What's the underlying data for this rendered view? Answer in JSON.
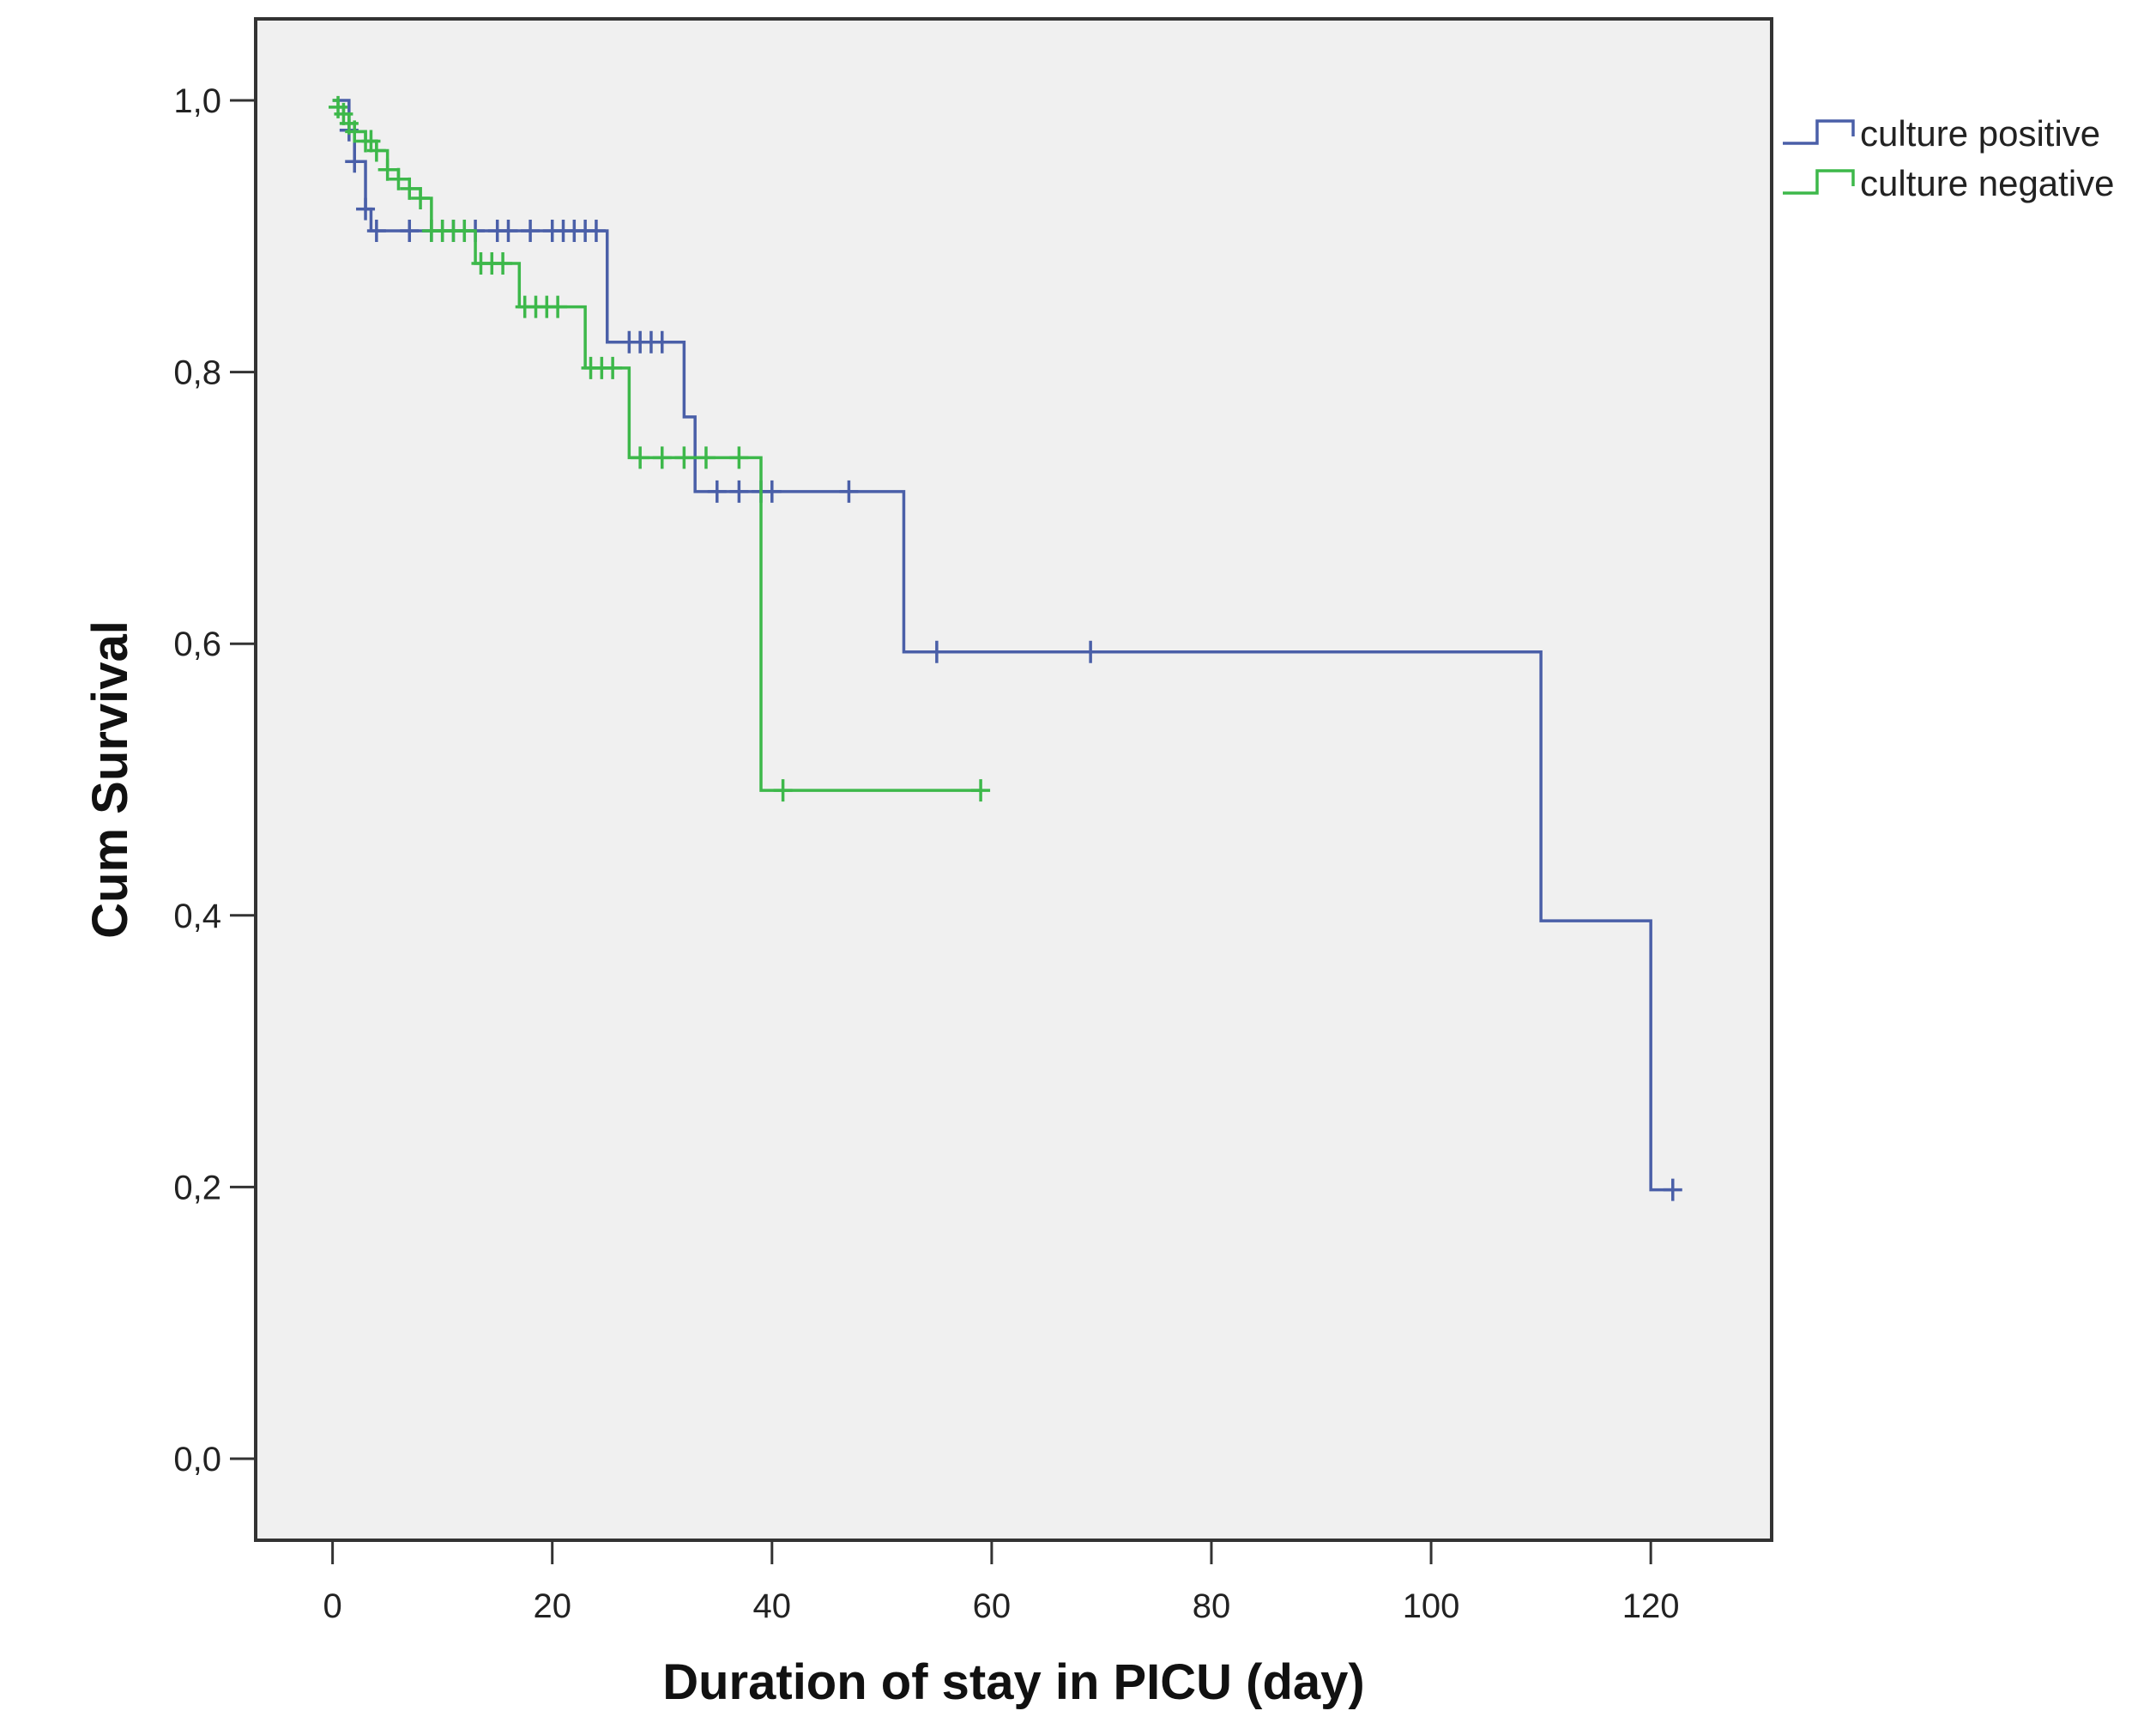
{
  "chart_data": {
    "type": "line",
    "subtype": "kaplan-meier-step",
    "title": "",
    "xlabel": "Duration of stay in PICU (day)",
    "ylabel": "Cum Survival",
    "xlim": [
      -7,
      131
    ],
    "ylim": [
      -0.06,
      1.06
    ],
    "xticks": [
      0,
      20,
      40,
      60,
      80,
      100,
      120
    ],
    "yticks": [
      0.0,
      0.2,
      0.4,
      0.6,
      0.8,
      1.0
    ],
    "xtick_labels": [
      "0",
      "20",
      "40",
      "60",
      "80",
      "100",
      "120"
    ],
    "ytick_labels": [
      "0,0",
      "0,2",
      "0,4",
      "0,6",
      "0,8",
      "1,0"
    ],
    "grid": false,
    "plot_background": "#f0f0f0",
    "legend_position": "outside-top-right",
    "series": [
      {
        "name": "culture positive",
        "color": "#4a5fa8",
        "start": [
          0,
          1.0
        ],
        "steps": [
          [
            1.5,
            0.978
          ],
          [
            2,
            0.955
          ],
          [
            3,
            0.92
          ],
          [
            3.5,
            0.904
          ],
          [
            25,
            0.822
          ],
          [
            32,
            0.767
          ],
          [
            33,
            0.712
          ],
          [
            52,
            0.594
          ],
          [
            110,
            0.396
          ],
          [
            120,
            0.198
          ]
        ],
        "end_x": 122,
        "censored": [
          [
            1.5,
            0.978
          ],
          [
            2,
            0.955
          ],
          [
            3,
            0.92
          ],
          [
            4,
            0.904
          ],
          [
            7,
            0.904
          ],
          [
            9,
            0.904
          ],
          [
            10,
            0.904
          ],
          [
            11,
            0.904
          ],
          [
            12,
            0.904
          ],
          [
            13,
            0.904
          ],
          [
            15,
            0.904
          ],
          [
            16,
            0.904
          ],
          [
            18,
            0.904
          ],
          [
            20,
            0.904
          ],
          [
            21,
            0.904
          ],
          [
            22,
            0.904
          ],
          [
            23,
            0.904
          ],
          [
            24,
            0.904
          ],
          [
            27,
            0.822
          ],
          [
            28,
            0.822
          ],
          [
            29,
            0.822
          ],
          [
            30,
            0.822
          ],
          [
            35,
            0.712
          ],
          [
            37,
            0.712
          ],
          [
            39,
            0.712
          ],
          [
            40,
            0.712
          ],
          [
            47,
            0.712
          ],
          [
            55,
            0.594
          ],
          [
            69,
            0.594
          ],
          [
            122,
            0.198
          ]
        ]
      },
      {
        "name": "culture negative",
        "color": "#3db84a",
        "start": [
          0,
          1.0
        ],
        "steps": [
          [
            0.5,
            0.995
          ],
          [
            1,
            0.99
          ],
          [
            1.5,
            0.983
          ],
          [
            2,
            0.977
          ],
          [
            3,
            0.97
          ],
          [
            4,
            0.963
          ],
          [
            5,
            0.949
          ],
          [
            6,
            0.942
          ],
          [
            7,
            0.935
          ],
          [
            8,
            0.928
          ],
          [
            9,
            0.904
          ],
          [
            13,
            0.88
          ],
          [
            17,
            0.848
          ],
          [
            23,
            0.803
          ],
          [
            27,
            0.737
          ],
          [
            39,
            0.492
          ]
        ],
        "end_x": 59,
        "censored": [
          [
            0.5,
            0.995
          ],
          [
            1,
            0.99
          ],
          [
            1.5,
            0.983
          ],
          [
            2,
            0.977
          ],
          [
            3,
            0.97
          ],
          [
            3.5,
            0.97
          ],
          [
            4,
            0.963
          ],
          [
            5,
            0.949
          ],
          [
            6,
            0.942
          ],
          [
            7,
            0.935
          ],
          [
            8,
            0.928
          ],
          [
            9,
            0.904
          ],
          [
            10,
            0.904
          ],
          [
            11,
            0.904
          ],
          [
            12,
            0.904
          ],
          [
            13.5,
            0.88
          ],
          [
            14.5,
            0.88
          ],
          [
            15.5,
            0.88
          ],
          [
            17.5,
            0.848
          ],
          [
            18.5,
            0.848
          ],
          [
            19.5,
            0.848
          ],
          [
            20.5,
            0.848
          ],
          [
            23.5,
            0.803
          ],
          [
            24.5,
            0.803
          ],
          [
            25.5,
            0.803
          ],
          [
            28,
            0.737
          ],
          [
            30,
            0.737
          ],
          [
            32,
            0.737
          ],
          [
            34,
            0.737
          ],
          [
            37,
            0.737
          ],
          [
            41,
            0.492
          ],
          [
            59,
            0.492
          ]
        ]
      }
    ]
  }
}
